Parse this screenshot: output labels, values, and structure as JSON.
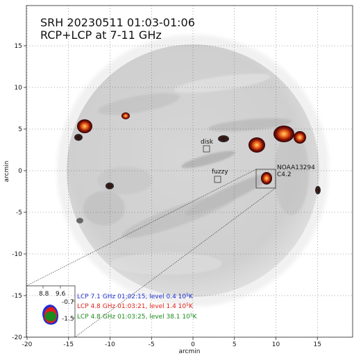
{
  "figure": {
    "title_line1": "SRH 20230511 01:03-01:06",
    "title_line2": "RCP+LCP at 7-11 GHz",
    "xlabel": "arcmin",
    "ylabel": "arcmin",
    "x_ticks": [
      "-20",
      "-15",
      "-10",
      "-5",
      "0",
      "5",
      "10",
      "15"
    ],
    "y_ticks": [
      "15",
      "10",
      "5",
      "0",
      "-5",
      "-10",
      "-15",
      "-20"
    ]
  },
  "annotations": {
    "disk_label": "disk",
    "fuzzy_label": "fuzzy",
    "region_name": "NOAA13294",
    "flare_class": "C4.2"
  },
  "inset": {
    "x_ticks": [
      "8.8",
      "9.6"
    ],
    "y_ticks": [
      "-0.7",
      "-1.5"
    ]
  },
  "legend": [
    {
      "text": "LCP 7.1 GHz 01:02:15, level 0.4 10",
      "sup": "5",
      "suffix": "K",
      "color": "#1f2fd0"
    },
    {
      "text": "LCP 4.8 GHz 01:03:21, level 1.4 10",
      "sup": "5",
      "suffix": "K",
      "color": "#e0201a"
    },
    {
      "text": "LCP 4.8 GHz 01:03:25, level 38.1 10",
      "sup": "5",
      "suffix": "K",
      "color": "#1a8a1a"
    }
  ]
}
